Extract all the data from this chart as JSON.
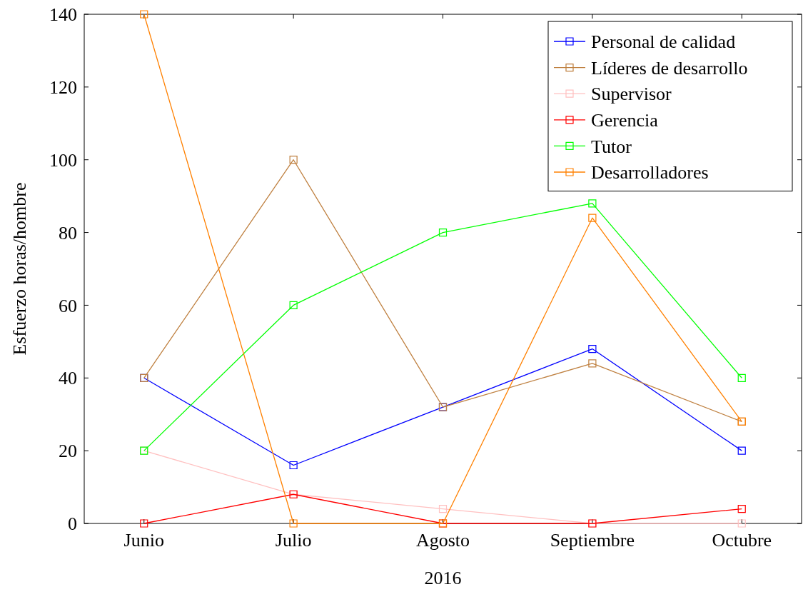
{
  "chart_data": {
    "type": "line",
    "xlabel": "2016",
    "ylabel": "Esfuerzo horas/hombre",
    "categories": [
      "Junio",
      "Julio",
      "Agosto",
      "Septiembre",
      "Octubre"
    ],
    "ylim": [
      0,
      140
    ],
    "yticks": [
      0,
      20,
      40,
      60,
      80,
      100,
      120,
      140
    ],
    "marker": "square",
    "legend": "top right",
    "grid": false,
    "series": [
      {
        "name": "Personal de calidad",
        "color": "#0000ff",
        "values": [
          40,
          16,
          32,
          48,
          20
        ]
      },
      {
        "name": "Líderes de desarrollo",
        "color": "#bf8040",
        "values": [
          40,
          100,
          32,
          44,
          28
        ]
      },
      {
        "name": "Supervisor",
        "color": "#ffc0c0",
        "values": [
          20,
          8,
          4,
          0,
          0
        ]
      },
      {
        "name": "Gerencia",
        "color": "#ff0000",
        "values": [
          0,
          8,
          0,
          0,
          4
        ]
      },
      {
        "name": "Tutor",
        "color": "#00ff00",
        "values": [
          20,
          60,
          80,
          88,
          40
        ]
      },
      {
        "name": "Desarrolladores",
        "color": "#ff8000",
        "values": [
          140,
          0,
          0,
          84,
          28
        ]
      }
    ]
  }
}
